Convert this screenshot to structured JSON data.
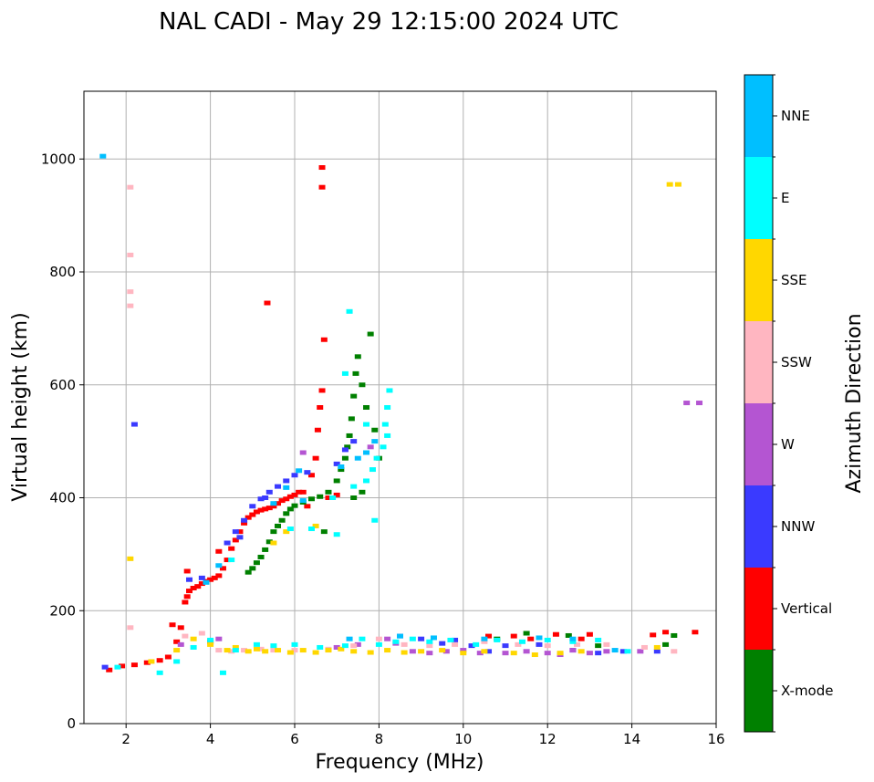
{
  "chart_data": {
    "type": "scatter",
    "title": "NAL CADI - May 29 12:15:00 2024 UTC",
    "xlabel": "Frequency (MHz)",
    "ylabel": "Virtual height (km)",
    "xlim": [
      1,
      16
    ],
    "ylim": [
      0,
      1120
    ],
    "xticks": [
      2,
      4,
      6,
      8,
      10,
      12,
      14,
      16
    ],
    "yticks": [
      0,
      200,
      400,
      600,
      800,
      1000
    ],
    "grid": true,
    "colorbar": {
      "label": "Azimuth Direction",
      "categories": [
        {
          "name": "X-mode",
          "color": "#008000"
        },
        {
          "name": "Vertical",
          "color": "#ff0000"
        },
        {
          "name": "NNW",
          "color": "#3a3aff"
        },
        {
          "name": "W",
          "color": "#b455d2"
        },
        {
          "name": "SSW",
          "color": "#ffb6c1"
        },
        {
          "name": "SSE",
          "color": "#ffd700"
        },
        {
          "name": "E",
          "color": "#00ffff"
        },
        {
          "name": "NNE",
          "color": "#00bfff"
        }
      ]
    },
    "series": [
      {
        "name": "Vertical",
        "points": [
          [
            1.6,
            95
          ],
          [
            1.9,
            102
          ],
          [
            2.2,
            104
          ],
          [
            2.5,
            108
          ],
          [
            2.8,
            112
          ],
          [
            3.0,
            118
          ],
          [
            3.1,
            175
          ],
          [
            3.3,
            170
          ],
          [
            3.4,
            215
          ],
          [
            3.45,
            225
          ],
          [
            3.5,
            235
          ],
          [
            3.6,
            240
          ],
          [
            3.7,
            243
          ],
          [
            3.8,
            248
          ],
          [
            3.9,
            252
          ],
          [
            4.0,
            255
          ],
          [
            4.1,
            258
          ],
          [
            4.2,
            262
          ],
          [
            4.3,
            275
          ],
          [
            4.4,
            290
          ],
          [
            4.5,
            310
          ],
          [
            4.6,
            325
          ],
          [
            4.7,
            340
          ],
          [
            4.8,
            355
          ],
          [
            4.9,
            365
          ],
          [
            5.0,
            370
          ],
          [
            5.1,
            375
          ],
          [
            5.2,
            378
          ],
          [
            5.3,
            380
          ],
          [
            5.4,
            382
          ],
          [
            5.5,
            385
          ],
          [
            5.6,
            390
          ],
          [
            5.7,
            395
          ],
          [
            5.8,
            398
          ],
          [
            5.9,
            402
          ],
          [
            6.0,
            405
          ],
          [
            6.2,
            410
          ],
          [
            6.4,
            440
          ],
          [
            6.5,
            470
          ],
          [
            6.55,
            520
          ],
          [
            6.6,
            560
          ],
          [
            6.65,
            590
          ],
          [
            6.7,
            680
          ],
          [
            6.65,
            985
          ],
          [
            6.65,
            950
          ],
          [
            5.35,
            745
          ],
          [
            6.1,
            410
          ],
          [
            3.45,
            270
          ],
          [
            3.2,
            145
          ],
          [
            4.0,
            145
          ],
          [
            4.2,
            305
          ],
          [
            10.6,
            155
          ],
          [
            11.2,
            155
          ],
          [
            11.6,
            150
          ],
          [
            12.2,
            158
          ],
          [
            12.8,
            150
          ],
          [
            13.0,
            158
          ],
          [
            14.5,
            157
          ],
          [
            14.8,
            162
          ],
          [
            15.5,
            162
          ],
          [
            6.3,
            385
          ],
          [
            6.8,
            400
          ],
          [
            7.0,
            405
          ]
        ]
      },
      {
        "name": "X-mode",
        "points": [
          [
            4.9,
            268
          ],
          [
            5.0,
            275
          ],
          [
            5.1,
            285
          ],
          [
            5.2,
            295
          ],
          [
            5.3,
            308
          ],
          [
            5.4,
            322
          ],
          [
            5.5,
            340
          ],
          [
            5.6,
            350
          ],
          [
            5.7,
            360
          ],
          [
            5.8,
            372
          ],
          [
            5.9,
            380
          ],
          [
            6.0,
            386
          ],
          [
            6.2,
            392
          ],
          [
            6.4,
            398
          ],
          [
            6.6,
            402
          ],
          [
            6.8,
            410
          ],
          [
            7.0,
            430
          ],
          [
            7.1,
            450
          ],
          [
            7.2,
            470
          ],
          [
            7.25,
            490
          ],
          [
            7.3,
            510
          ],
          [
            7.35,
            540
          ],
          [
            7.4,
            580
          ],
          [
            7.45,
            620
          ],
          [
            7.5,
            650
          ],
          [
            7.8,
            690
          ],
          [
            7.6,
            600
          ],
          [
            7.7,
            560
          ],
          [
            7.9,
            520
          ],
          [
            8.0,
            470
          ],
          [
            6.7,
            340
          ],
          [
            13.2,
            138
          ],
          [
            15.0,
            156
          ],
          [
            14.8,
            140
          ],
          [
            12.5,
            156
          ],
          [
            11.5,
            160
          ],
          [
            10.8,
            150
          ],
          [
            7.4,
            400
          ],
          [
            7.6,
            410
          ]
        ]
      },
      {
        "name": "NNW",
        "points": [
          [
            1.5,
            100
          ],
          [
            3.5,
            255
          ],
          [
            3.8,
            258
          ],
          [
            4.4,
            320
          ],
          [
            4.6,
            340
          ],
          [
            4.8,
            360
          ],
          [
            5.0,
            385
          ],
          [
            5.2,
            398
          ],
          [
            5.4,
            410
          ],
          [
            5.6,
            420
          ],
          [
            5.8,
            430
          ],
          [
            6.0,
            440
          ],
          [
            6.3,
            445
          ],
          [
            7.0,
            460
          ],
          [
            7.2,
            485
          ],
          [
            7.4,
            500
          ],
          [
            9.0,
            150
          ],
          [
            9.5,
            142
          ],
          [
            10.2,
            138
          ],
          [
            10.6,
            128
          ],
          [
            11.0,
            138
          ],
          [
            11.8,
            140
          ],
          [
            12.6,
            130
          ],
          [
            13.2,
            125
          ],
          [
            14.6,
            128
          ],
          [
            2.2,
            530
          ],
          [
            5.3,
            400
          ],
          [
            4.7,
            330
          ],
          [
            8.5,
            155
          ],
          [
            9.8,
            148
          ],
          [
            13.8,
            128
          ]
        ]
      },
      {
        "name": "W",
        "points": [
          [
            3.3,
            140
          ],
          [
            4.2,
            150
          ],
          [
            7.0,
            135
          ],
          [
            7.5,
            140
          ],
          [
            8.4,
            142
          ],
          [
            8.8,
            128
          ],
          [
            9.2,
            125
          ],
          [
            9.6,
            128
          ],
          [
            10.0,
            130
          ],
          [
            10.4,
            125
          ],
          [
            11.0,
            125
          ],
          [
            11.5,
            128
          ],
          [
            12.0,
            125
          ],
          [
            12.6,
            130
          ],
          [
            13.0,
            125
          ],
          [
            13.4,
            128
          ],
          [
            14.2,
            128
          ],
          [
            15.3,
            568
          ],
          [
            15.6,
            568
          ],
          [
            6.2,
            480
          ],
          [
            7.8,
            490
          ],
          [
            8.2,
            150
          ],
          [
            12.3,
            122
          ]
        ]
      },
      {
        "name": "SSW",
        "points": [
          [
            2.1,
            170
          ],
          [
            2.1,
            740
          ],
          [
            2.1,
            765
          ],
          [
            2.1,
            830
          ],
          [
            2.1,
            950
          ],
          [
            4.2,
            130
          ],
          [
            4.5,
            128
          ],
          [
            4.8,
            130
          ],
          [
            5.2,
            132
          ],
          [
            5.5,
            130
          ],
          [
            6.0,
            130
          ],
          [
            6.8,
            132
          ],
          [
            7.4,
            138
          ],
          [
            8.0,
            150
          ],
          [
            8.6,
            140
          ],
          [
            9.2,
            138
          ],
          [
            9.8,
            140
          ],
          [
            10.5,
            145
          ],
          [
            11.3,
            140
          ],
          [
            12.0,
            138
          ],
          [
            12.7,
            140
          ],
          [
            13.4,
            140
          ],
          [
            14.3,
            135
          ],
          [
            15.0,
            128
          ],
          [
            3.4,
            155
          ],
          [
            3.8,
            160
          ]
        ]
      },
      {
        "name": "SSE",
        "points": [
          [
            2.1,
            292
          ],
          [
            3.6,
            150
          ],
          [
            4.0,
            140
          ],
          [
            4.4,
            130
          ],
          [
            4.6,
            135
          ],
          [
            4.9,
            128
          ],
          [
            5.1,
            132
          ],
          [
            5.3,
            128
          ],
          [
            5.6,
            130
          ],
          [
            5.9,
            126
          ],
          [
            6.2,
            130
          ],
          [
            6.5,
            126
          ],
          [
            6.8,
            130
          ],
          [
            7.1,
            132
          ],
          [
            7.4,
            128
          ],
          [
            7.8,
            126
          ],
          [
            8.2,
            130
          ],
          [
            8.6,
            126
          ],
          [
            9.0,
            128
          ],
          [
            9.5,
            130
          ],
          [
            10.0,
            125
          ],
          [
            10.5,
            128
          ],
          [
            11.2,
            125
          ],
          [
            11.7,
            122
          ],
          [
            12.3,
            125
          ],
          [
            12.8,
            128
          ],
          [
            14.6,
            135
          ],
          [
            15.1,
            955
          ],
          [
            14.9,
            955
          ],
          [
            5.5,
            320
          ],
          [
            5.8,
            340
          ],
          [
            6.5,
            350
          ],
          [
            3.2,
            130
          ],
          [
            2.6,
            110
          ]
        ]
      },
      {
        "name": "E",
        "points": [
          [
            1.8,
            100
          ],
          [
            2.8,
            90
          ],
          [
            3.2,
            110
          ],
          [
            3.6,
            135
          ],
          [
            4.0,
            148
          ],
          [
            4.3,
            90
          ],
          [
            4.6,
            130
          ],
          [
            5.1,
            140
          ],
          [
            5.5,
            138
          ],
          [
            6.0,
            140
          ],
          [
            6.6,
            135
          ],
          [
            7.2,
            138
          ],
          [
            7.6,
            150
          ],
          [
            8.0,
            140
          ],
          [
            8.4,
            145
          ],
          [
            8.8,
            150
          ],
          [
            9.2,
            145
          ],
          [
            9.7,
            148
          ],
          [
            10.3,
            140
          ],
          [
            10.8,
            148
          ],
          [
            11.4,
            145
          ],
          [
            12.0,
            148
          ],
          [
            12.6,
            145
          ],
          [
            13.2,
            148
          ],
          [
            13.9,
            128
          ],
          [
            4.5,
            290
          ],
          [
            5.9,
            345
          ],
          [
            6.4,
            345
          ],
          [
            6.9,
            400
          ],
          [
            7.4,
            420
          ],
          [
            7.7,
            430
          ],
          [
            7.85,
            450
          ],
          [
            7.95,
            470
          ],
          [
            8.1,
            490
          ],
          [
            8.2,
            510
          ],
          [
            8.15,
            530
          ],
          [
            8.2,
            560
          ],
          [
            8.25,
            590
          ],
          [
            7.3,
            730
          ],
          [
            7.2,
            620
          ],
          [
            7.0,
            335
          ],
          [
            7.9,
            360
          ],
          [
            7.7,
            530
          ]
        ]
      },
      {
        "name": "NNE",
        "points": [
          [
            1.45,
            1005
          ],
          [
            3.9,
            250
          ],
          [
            4.2,
            280
          ],
          [
            5.5,
            390
          ],
          [
            5.8,
            418
          ],
          [
            6.1,
            448
          ],
          [
            6.2,
            395
          ],
          [
            7.1,
            455
          ],
          [
            7.5,
            470
          ],
          [
            7.7,
            480
          ],
          [
            7.9,
            500
          ],
          [
            8.5,
            155
          ],
          [
            9.3,
            152
          ],
          [
            10.5,
            150
          ],
          [
            11.8,
            152
          ],
          [
            12.6,
            150
          ],
          [
            13.6,
            130
          ],
          [
            7.3,
            150
          ]
        ]
      }
    ]
  }
}
